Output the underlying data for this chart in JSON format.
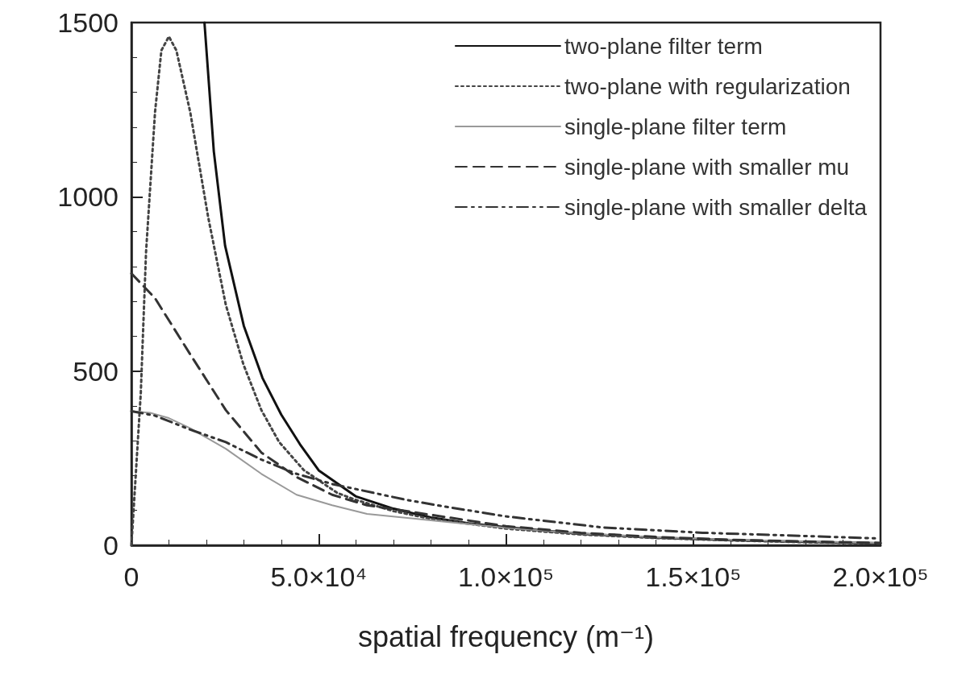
{
  "chart_data": {
    "type": "line",
    "xlabel": "spatial frequency (m⁻¹)",
    "xlim": [
      0,
      200000
    ],
    "ylim": [
      0,
      1500
    ],
    "xticks": [
      0,
      {
        "value": 50000,
        "label": "5.0×10⁴"
      },
      {
        "value": 100000,
        "label": "1.0×10⁵"
      },
      {
        "value": 150000,
        "label": "1.5×10⁵"
      },
      {
        "value": 200000,
        "label": "2.0×10⁵"
      }
    ],
    "yticks": [
      0,
      500,
      1000,
      1500
    ],
    "grid": false,
    "legend": "top right",
    "marker": "none",
    "series": [
      {
        "name": "two-plane filter term",
        "color": "#111111",
        "line_style": "solid",
        "x": [
          19500,
          22000,
          25000,
          30000,
          35000,
          40000,
          45000,
          50000,
          60000,
          70000,
          80000,
          90000,
          100000,
          120000,
          140000,
          160000,
          180000,
          200000
        ],
        "values": [
          1500,
          1130,
          860,
          630,
          480,
          375,
          290,
          215,
          140,
          105,
          80,
          63,
          52,
          33,
          22,
          15,
          10,
          6
        ]
      },
      {
        "name": "two-plane with regularization",
        "color": "#444444",
        "line_style": "dotted",
        "x": [
          0,
          2500,
          3900,
          6300,
          8000,
          10000,
          12000,
          15700,
          20500,
          25200,
          29900,
          34700,
          39400,
          46000,
          55000,
          60000,
          70000,
          80000,
          100000,
          120000,
          140000,
          160000,
          180000,
          200000
        ],
        "values": [
          0,
          437,
          841,
          1243,
          1420,
          1460,
          1420,
          1243,
          941,
          690,
          519,
          388,
          297,
          216,
          150,
          130,
          98,
          76,
          48,
          31,
          21,
          14,
          9,
          5
        ]
      },
      {
        "name": "single-plane filter term",
        "color": "#999999",
        "line_style": "solid",
        "x": [
          0,
          5000,
          10000,
          15700,
          25200,
          34700,
          44100,
          53600,
          62900,
          81500,
          100000,
          120000,
          140000,
          160000,
          180000,
          200000
        ],
        "values": [
          385,
          380,
          365,
          336,
          277,
          205,
          145,
          115,
          90,
          70,
          50,
          34,
          23,
          16,
          11,
          7
        ]
      },
      {
        "name": "single-plane with smaller mu",
        "color": "#333333",
        "line_style": "dashed",
        "x": [
          0,
          6300,
          15700,
          25200,
          34700,
          44100,
          53600,
          62900,
          81500,
          100000,
          120000,
          140000,
          160000,
          180000,
          200000
        ],
        "values": [
          780,
          709,
          548,
          388,
          266,
          196,
          145,
          115,
          85,
          55,
          36,
          24,
          16,
          11,
          7
        ]
      },
      {
        "name": "single-plane with smaller delta",
        "color": "#333333",
        "line_style": "dashdot",
        "x": [
          0,
          6300,
          15700,
          25200,
          34700,
          44100,
          53600,
          73100,
          81500,
          100000,
          126000,
          152500,
          179000,
          198500
        ],
        "values": [
          385,
          372,
          332,
          296,
          246,
          205,
          176,
          131,
          115,
          83,
          51,
          36,
          27,
          20
        ]
      }
    ]
  }
}
